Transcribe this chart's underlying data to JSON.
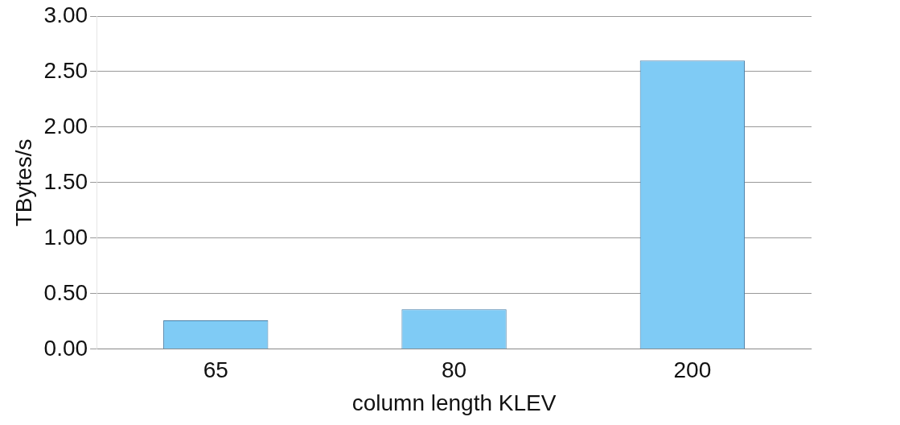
{
  "chart_data": {
    "type": "bar",
    "categories": [
      "65",
      "80",
      "200"
    ],
    "values": [
      0.26,
      0.36,
      2.6
    ],
    "color": "#7fcbf5",
    "xlabel": "column length KLEV",
    "ylabel": "TBytes/s",
    "ylim": [
      0,
      3
    ],
    "yticks": [
      {
        "value": 0,
        "label": "0.00"
      },
      {
        "value": 0.5,
        "label": "0.50"
      },
      {
        "value": 1,
        "label": "1.00"
      },
      {
        "value": 1.5,
        "label": "1.50"
      },
      {
        "value": 2,
        "label": "2.00"
      },
      {
        "value": 2.5,
        "label": "2.50"
      },
      {
        "value": 3,
        "label": "3.00"
      }
    ],
    "grid": "y",
    "legend": false
  }
}
